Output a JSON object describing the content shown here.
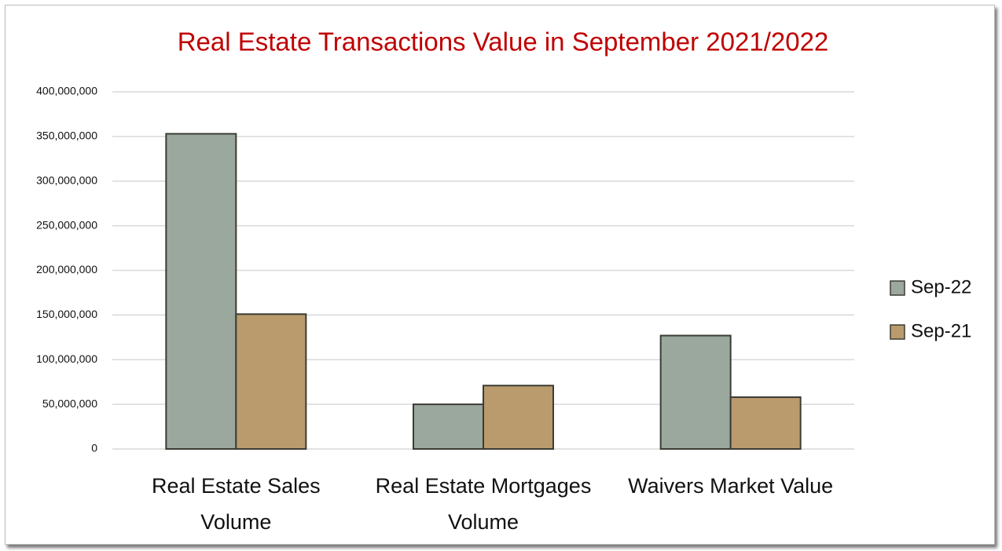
{
  "chart_data": {
    "type": "bar",
    "title": "Real Estate Transactions Value in September 2021/2022",
    "categories": [
      "Real Estate Sales Volume",
      "Real Estate Mortgages Volume",
      "Waivers Market Value"
    ],
    "series": [
      {
        "name": "Sep-22",
        "color": "#9aa89d",
        "values": [
          353000000,
          50000000,
          127000000
        ]
      },
      {
        "name": "Sep-21",
        "color": "#b99b6e",
        "values": [
          151000000,
          71000000,
          58000000
        ]
      }
    ],
    "ylim": [
      0,
      400000000
    ],
    "yticks": [
      0,
      {
        "value": 50000000,
        "label": "50,000,000"
      },
      {
        "value": 100000000,
        "label": "100,000,000"
      },
      {
        "value": 150000000,
        "label": "150,000,000"
      },
      {
        "value": 200000000,
        "label": "200,000,000"
      },
      {
        "value": 250000000,
        "label": "250,000,000"
      },
      {
        "value": 300000000,
        "label": "300,000,000"
      },
      {
        "value": 350000000,
        "label": "350,000,000"
      },
      {
        "value": 400000000,
        "label": "400,000,000"
      }
    ],
    "grid": true,
    "legend": "right"
  }
}
